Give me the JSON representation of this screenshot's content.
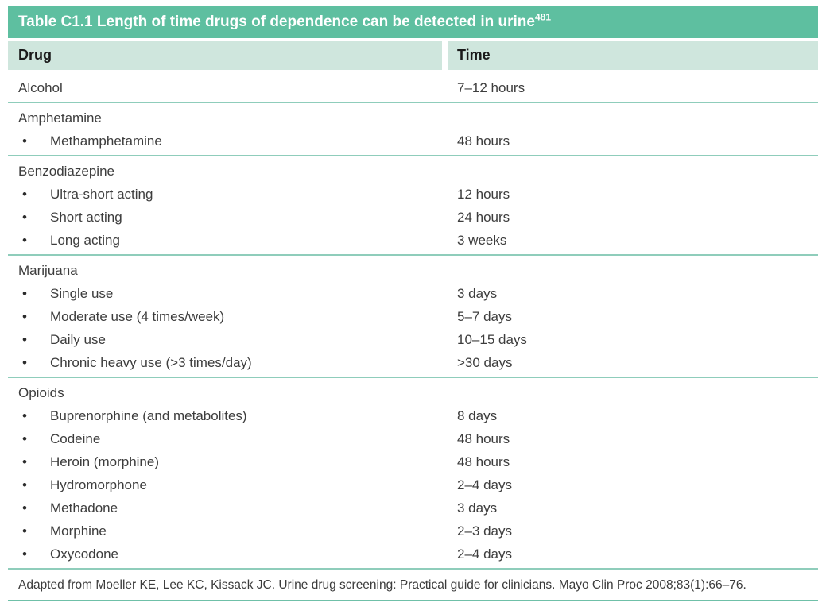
{
  "table": {
    "title": "Table C1.1 Length of time drugs of dependence can be detected in urine",
    "title_superscript": "481",
    "columns": {
      "drug": "Drug",
      "time": "Time"
    },
    "sections": [
      {
        "rows": [
          {
            "bullet": false,
            "label": "Alcohol",
            "time": "7–12 hours"
          }
        ]
      },
      {
        "rows": [
          {
            "bullet": false,
            "label": "Amphetamine",
            "time": ""
          },
          {
            "bullet": true,
            "label": "Methamphetamine",
            "time": "48 hours"
          }
        ]
      },
      {
        "rows": [
          {
            "bullet": false,
            "label": "Benzodiazepine",
            "time": ""
          },
          {
            "bullet": true,
            "label": "Ultra-short acting",
            "time": "12 hours"
          },
          {
            "bullet": true,
            "label": "Short acting",
            "time": "24 hours"
          },
          {
            "bullet": true,
            "label": "Long acting",
            "time": "3 weeks"
          }
        ]
      },
      {
        "rows": [
          {
            "bullet": false,
            "label": "Marijuana",
            "time": ""
          },
          {
            "bullet": true,
            "label": "Single use",
            "time": "3 days"
          },
          {
            "bullet": true,
            "label": "Moderate use (4 times/week)",
            "time": "5–7 days"
          },
          {
            "bullet": true,
            "label": "Daily use",
            "time": "10–15 days"
          },
          {
            "bullet": true,
            "label": "Chronic heavy use (>3 times/day)",
            "time": ">30 days"
          }
        ]
      },
      {
        "rows": [
          {
            "bullet": false,
            "label": "Opioids",
            "time": ""
          },
          {
            "bullet": true,
            "label": "Buprenorphine (and metabolites)",
            "time": "8 days"
          },
          {
            "bullet": true,
            "label": "Codeine",
            "time": "48 hours"
          },
          {
            "bullet": true,
            "label": "Heroin (morphine)",
            "time": "48 hours"
          },
          {
            "bullet": true,
            "label": "Hydromorphone",
            "time": "2–4 days"
          },
          {
            "bullet": true,
            "label": "Methadone",
            "time": "3 days"
          },
          {
            "bullet": true,
            "label": "Morphine",
            "time": "2–3 days"
          },
          {
            "bullet": true,
            "label": "Oxycodone",
            "time": "2–4 days"
          }
        ]
      }
    ],
    "footer": "Adapted from Moeller KE, Lee KC, Kissack JC. Urine drug screening: Practical guide for clinicians. Mayo Clin Proc 2008;83(1):66–76."
  },
  "icons": {
    "bullet": "•"
  },
  "colors": {
    "title_bar_bg": "#5ebfa0",
    "title_text": "#ffffff",
    "column_header_bg": "#cfe6dd",
    "section_divider": "#8fcdbb",
    "footer_divider": "#6fc0a8",
    "body_text": "#3d3d3d",
    "header_text": "#1a1a1a"
  }
}
